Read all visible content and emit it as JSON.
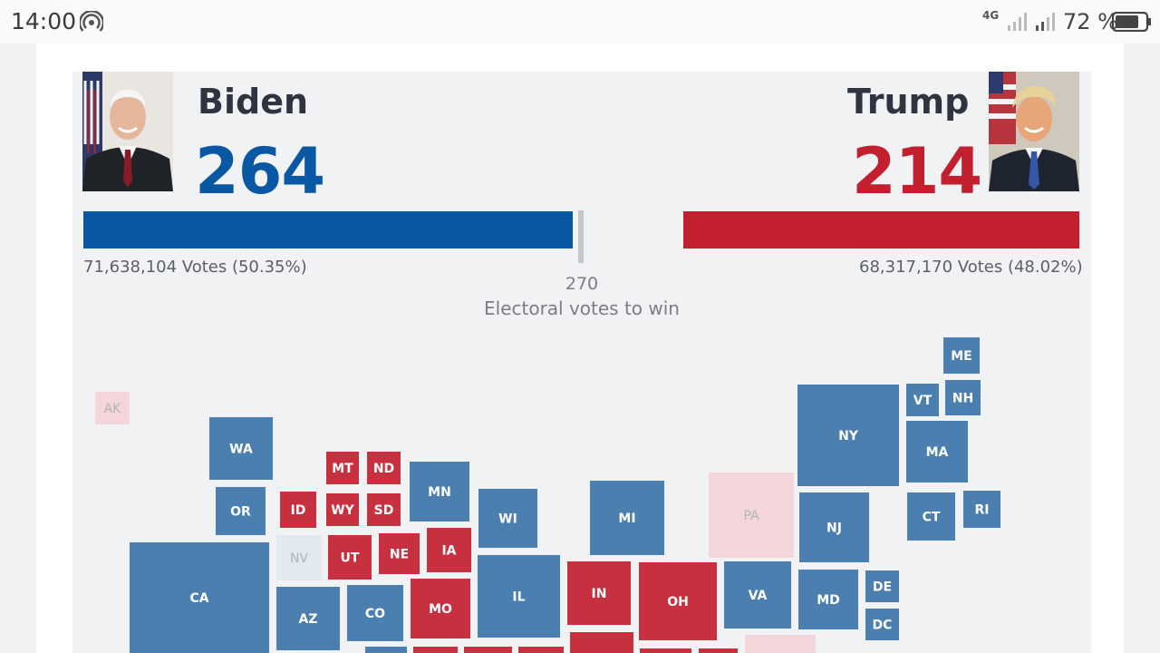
{
  "status_bar": {
    "time": "14:00",
    "network": "4G",
    "battery_percent": "72 %"
  },
  "candidates": {
    "left": {
      "name": "Biden",
      "electoral_votes": "264",
      "popular_votes": "71,638,104 Votes (50.35%)",
      "color": "#0a58a3"
    },
    "right": {
      "name": "Trump",
      "electoral_votes": "214",
      "popular_votes": "68,317,170 Votes (48.02%)",
      "color": "#c2202e"
    }
  },
  "threshold": {
    "number": "270",
    "label": "Electoral votes to win"
  },
  "colors": {
    "dem_tile": "#4b7fb0",
    "rep_tile": "#c7313f",
    "tossup_rep": "#f4d6da",
    "tossup_dem": "#e3e9f0"
  },
  "map": {
    "states": [
      {
        "abbr": "AK",
        "status": "lean-rep"
      },
      {
        "abbr": "WA",
        "status": "dem"
      },
      {
        "abbr": "OR",
        "status": "dem"
      },
      {
        "abbr": "CA",
        "status": "dem"
      },
      {
        "abbr": "ID",
        "status": "rep"
      },
      {
        "abbr": "NV",
        "status": "lean-dem"
      },
      {
        "abbr": "MT",
        "status": "rep"
      },
      {
        "abbr": "ND",
        "status": "rep"
      },
      {
        "abbr": "WY",
        "status": "rep"
      },
      {
        "abbr": "SD",
        "status": "rep"
      },
      {
        "abbr": "UT",
        "status": "rep"
      },
      {
        "abbr": "NE",
        "status": "rep"
      },
      {
        "abbr": "AZ",
        "status": "dem"
      },
      {
        "abbr": "CO",
        "status": "dem"
      },
      {
        "abbr": "MN",
        "status": "dem"
      },
      {
        "abbr": "IA",
        "status": "rep"
      },
      {
        "abbr": "MO",
        "status": "rep"
      },
      {
        "abbr": "WI",
        "status": "dem"
      },
      {
        "abbr": "IL",
        "status": "dem"
      },
      {
        "abbr": "MI",
        "status": "dem"
      },
      {
        "abbr": "IN",
        "status": "rep"
      },
      {
        "abbr": "OH",
        "status": "rep"
      },
      {
        "abbr": "PA",
        "status": "lean-rep"
      },
      {
        "abbr": "VA",
        "status": "dem"
      },
      {
        "abbr": "NY",
        "status": "dem"
      },
      {
        "abbr": "NJ",
        "status": "dem"
      },
      {
        "abbr": "MD",
        "status": "dem"
      },
      {
        "abbr": "DE",
        "status": "dem"
      },
      {
        "abbr": "DC",
        "status": "dem"
      },
      {
        "abbr": "VT",
        "status": "dem"
      },
      {
        "abbr": "ME",
        "status": "dem"
      },
      {
        "abbr": "NH",
        "status": "dem"
      },
      {
        "abbr": "MA",
        "status": "dem"
      },
      {
        "abbr": "CT",
        "status": "dem"
      },
      {
        "abbr": "RI",
        "status": "dem"
      }
    ]
  }
}
